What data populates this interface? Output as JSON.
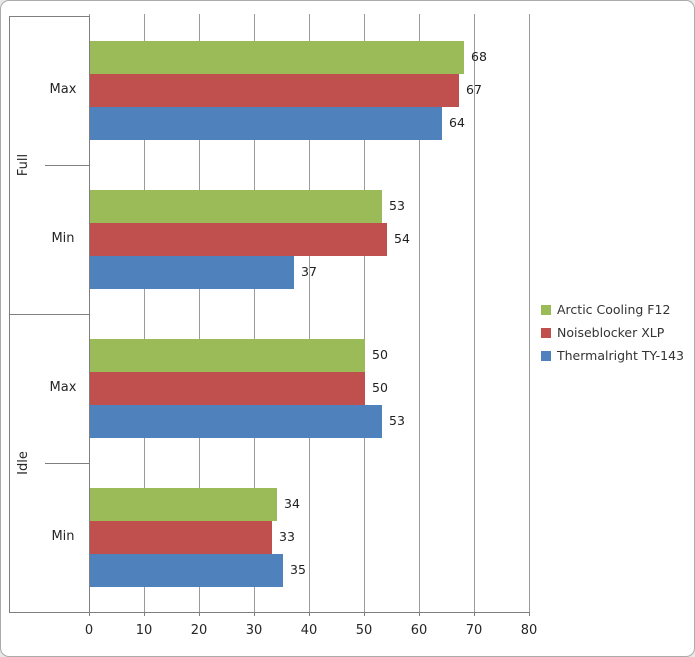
{
  "chart_data": {
    "type": "bar",
    "orientation": "horizontal",
    "title": "",
    "xlabel": "",
    "ylabel": "",
    "xlim": [
      0,
      80
    ],
    "xticks": [
      0,
      10,
      20,
      30,
      40,
      50,
      60,
      70,
      80
    ],
    "grid": true,
    "data_labels": true,
    "legend_position": "right",
    "categories": [
      {
        "group": "Full",
        "label": "Max"
      },
      {
        "group": "Full",
        "label": "Min"
      },
      {
        "group": "Idle",
        "label": "Max"
      },
      {
        "group": "Idle",
        "label": "Min"
      }
    ],
    "series": [
      {
        "name": "Arctic Cooling F12",
        "color": "#9bbb59",
        "values": [
          68,
          53,
          50,
          34
        ]
      },
      {
        "name": "Noiseblocker XLP",
        "color": "#c0504d",
        "values": [
          67,
          54,
          50,
          33
        ]
      },
      {
        "name": "Thermalright TY-143",
        "color": "#4f81bd",
        "values": [
          64,
          37,
          53,
          35
        ]
      }
    ]
  },
  "colors": {
    "background": "#ffffff",
    "chart_border": "#ababab",
    "gridline": "#9b9b9b",
    "axis_line": "#7f7f7f",
    "tick_text": "#262626",
    "data_label_text": "#1f1f1f",
    "legend_text": "#333333"
  }
}
